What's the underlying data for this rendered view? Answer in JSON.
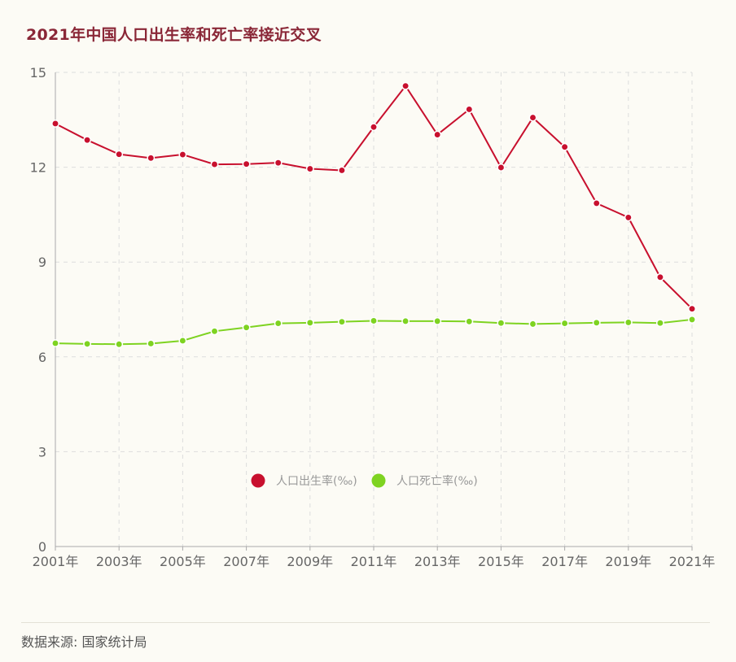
{
  "title": "2021年中国人口出生率和死亡率接近交叉",
  "source": "数据来源: 国家统计局",
  "colors": {
    "background": "#fcfbf5",
    "title": "#8a2737",
    "birth": "#c8102e",
    "death": "#7ed321",
    "grid": "#dddddd",
    "axis_text": "#666666"
  },
  "chart_data": {
    "type": "line",
    "x": [
      "2001年",
      "2002年",
      "2003年",
      "2004年",
      "2005年",
      "2006年",
      "2007年",
      "2008年",
      "2009年",
      "2010年",
      "2011年",
      "2012年",
      "2013年",
      "2014年",
      "2015年",
      "2016年",
      "2017年",
      "2018年",
      "2019年",
      "2020年",
      "2021年"
    ],
    "x_tick_labels": [
      "2001年",
      "2003年",
      "2005年",
      "2007年",
      "2009年",
      "2011年",
      "2013年",
      "2015年",
      "2017年",
      "2019年",
      "2021年"
    ],
    "y_ticks": [
      0,
      3,
      6,
      9,
      12,
      15
    ],
    "ylim": [
      0,
      15
    ],
    "series": [
      {
        "name": "人口出生率(‰)",
        "color": "#c8102e",
        "values": [
          13.38,
          12.86,
          12.41,
          12.29,
          12.4,
          12.09,
          12.1,
          12.14,
          11.95,
          11.9,
          13.27,
          14.57,
          13.03,
          13.83,
          11.99,
          13.57,
          12.64,
          10.86,
          10.41,
          8.52,
          7.52
        ]
      },
      {
        "name": "人口死亡率(‰)",
        "color": "#7ed321",
        "values": [
          6.43,
          6.41,
          6.4,
          6.42,
          6.51,
          6.81,
          6.93,
          7.06,
          7.08,
          7.11,
          7.14,
          7.13,
          7.13,
          7.12,
          7.07,
          7.04,
          7.06,
          7.08,
          7.09,
          7.07,
          7.18
        ]
      }
    ],
    "grid": true,
    "legend_position": "center"
  }
}
